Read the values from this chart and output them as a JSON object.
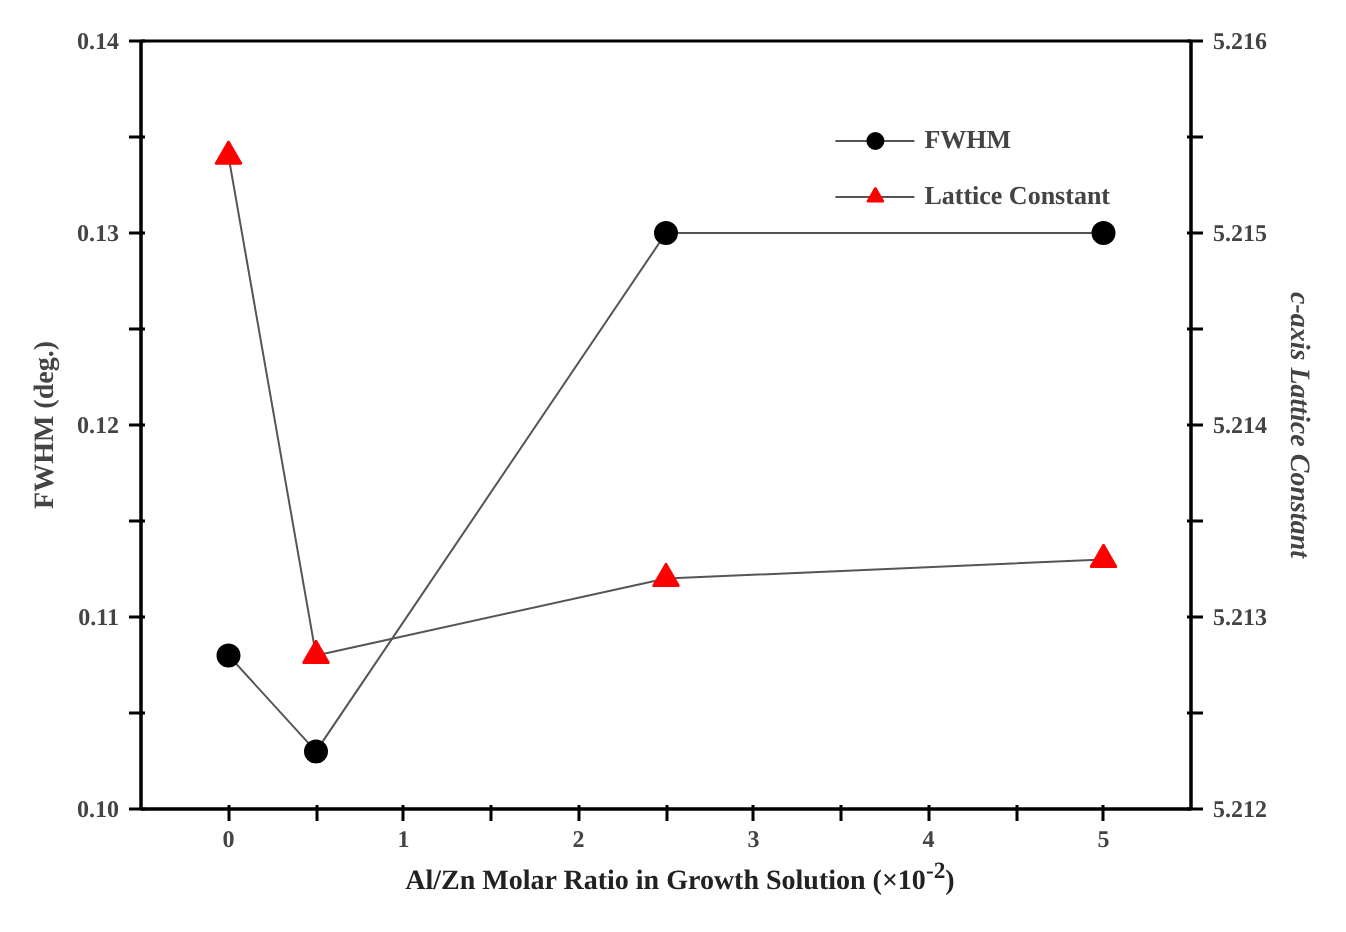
{
  "chart_data": {
    "type": "line",
    "xlabel": "Al/Zn Molar Ratio in Growth Solution (×10$^{-2}$)",
    "ylabel": "FWHM (deg.)",
    "y2label": "c-axis Lattice Constant",
    "x": [
      0,
      0.5,
      2.5,
      5
    ],
    "series": [
      {
        "name": "FWHM",
        "color": "#000000",
        "marker": "circle",
        "values": [
          0.108,
          0.103,
          0.13,
          0.13
        ]
      },
      {
        "name": "Lattice Constant",
        "color": "#ff0000",
        "marker": "triangle",
        "axis": "y2",
        "values": [
          5.2154,
          5.2128,
          5.2132,
          5.2133
        ]
      }
    ],
    "xlim": [
      -0.5,
      5.5
    ],
    "xticks": [
      0,
      {
        "value": 0.5,
        "label": null
      },
      1,
      {
        "value": 1.5,
        "label": null
      },
      2,
      {
        "value": 2.5,
        "label": null
      },
      3,
      {
        "value": 3.5,
        "label": null
      },
      4,
      {
        "value": 4.5,
        "label": null
      },
      5
    ],
    "ylim": [
      0.1,
      0.14
    ],
    "yticks": [
      {
        "value": 0.1,
        "label": "0.10"
      },
      {
        "value": 0.105,
        "label": null
      },
      0.11,
      {
        "value": 0.115,
        "label": null
      },
      0.12,
      {
        "value": 0.125,
        "label": null
      },
      0.13,
      {
        "value": 0.135,
        "label": null
      },
      0.14
    ],
    "y2lim": [
      5.212,
      5.216
    ],
    "y2ticks": [
      5.212,
      {
        "value": 5.2125,
        "label": null
      },
      5.213,
      {
        "value": 5.2135,
        "label": null
      },
      5.214,
      {
        "value": 5.2145,
        "label": null
      },
      5.215,
      {
        "value": 5.2155,
        "label": null
      },
      5.216
    ],
    "grid": false,
    "legend": "top right",
    "line_style": "solid"
  }
}
